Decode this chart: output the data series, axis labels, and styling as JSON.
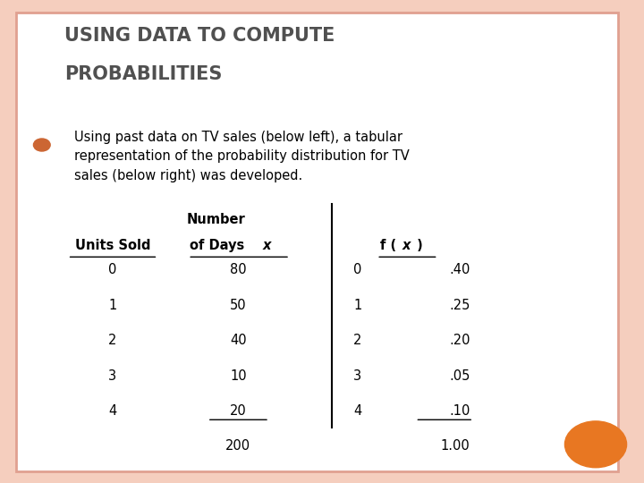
{
  "title_line1": "USING DATA TO COMPUTE",
  "title_line2": "PROBABILITIES",
  "body_text": "Using past data on TV sales (below left), a tabular\nrepresentation of the probability distribution for TV\nsales (below right) was developed.",
  "left_table": {
    "col1_header": "Units Sold",
    "col2_header_line1": "Number",
    "col2_header_line2": "of Days",
    "col2_header_italic": "x",
    "col1_data": [
      "0",
      "1",
      "2",
      "3",
      "4"
    ],
    "col2_data": [
      "80",
      "50",
      "40",
      "10",
      "20"
    ],
    "col2_total": "200"
  },
  "right_table": {
    "col1_data": [
      "0",
      "1",
      "2",
      "3",
      "4"
    ],
    "col2_data": [
      ".40",
      ".25",
      ".20",
      ".05",
      ".10"
    ],
    "col2_total": "1.00"
  },
  "bg_color": "#F5CEBE",
  "content_bg": "#FFFFFF",
  "bullet_color": "#CC6633",
  "orange_circle_color": "#E87722",
  "title_color": "#505050",
  "text_color": "#000000",
  "border_color": "#E0A090"
}
